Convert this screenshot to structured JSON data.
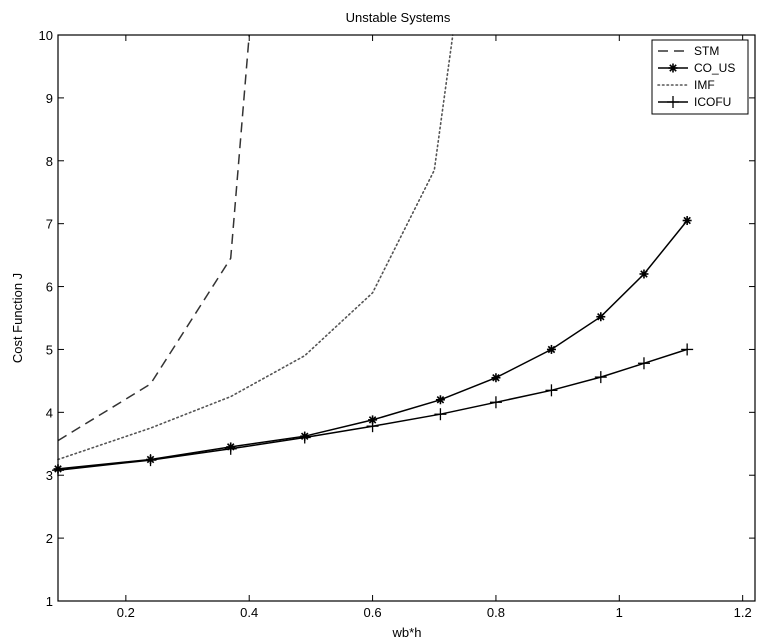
{
  "chart_data": {
    "type": "line",
    "title": "Unstable Systems",
    "xlabel": "wb*h",
    "ylabel": "Cost Function J",
    "xlim": [
      0.09,
      1.22
    ],
    "ylim": [
      1,
      10
    ],
    "xticks": [
      0.2,
      0.4,
      0.6,
      0.8,
      1,
      1.2
    ],
    "xtick_labels": [
      "0.2",
      "0.4",
      "0.6",
      "0.8",
      "1",
      "1.2"
    ],
    "yticks": [
      1,
      2,
      3,
      4,
      5,
      6,
      7,
      8,
      9,
      10
    ],
    "ytick_labels": [
      "1",
      "2",
      "3",
      "4",
      "5",
      "6",
      "7",
      "8",
      "9",
      "10"
    ],
    "grid": false,
    "legend_position": "top-right",
    "series": [
      {
        "name": "STM",
        "style": "dashed",
        "marker": "none",
        "color": "#333333",
        "x": [
          0.09,
          0.24,
          0.37,
          0.4
        ],
        "y": [
          3.55,
          4.45,
          6.45,
          10.0
        ]
      },
      {
        "name": "CO_US",
        "style": "solid",
        "marker": "asterisk",
        "color": "#000000",
        "x": [
          0.09,
          0.24,
          0.37,
          0.49,
          0.6,
          0.71,
          0.8,
          0.89,
          0.97,
          1.04,
          1.11
        ],
        "y": [
          3.1,
          3.25,
          3.45,
          3.62,
          3.88,
          4.2,
          4.55,
          5.0,
          5.52,
          6.2,
          7.05
        ]
      },
      {
        "name": "IMF",
        "style": "dotted",
        "marker": "none",
        "color": "#555555",
        "x": [
          0.09,
          0.24,
          0.37,
          0.49,
          0.6,
          0.7,
          0.73
        ],
        "y": [
          3.25,
          3.75,
          4.25,
          4.9,
          5.9,
          7.85,
          10.0
        ]
      },
      {
        "name": "ICOFU",
        "style": "solid",
        "marker": "plus",
        "color": "#000000",
        "x": [
          0.09,
          0.24,
          0.37,
          0.49,
          0.6,
          0.71,
          0.8,
          0.89,
          0.97,
          1.04,
          1.11
        ],
        "y": [
          3.08,
          3.24,
          3.42,
          3.6,
          3.78,
          3.97,
          4.16,
          4.35,
          4.56,
          4.78,
          5.0
        ]
      }
    ]
  }
}
